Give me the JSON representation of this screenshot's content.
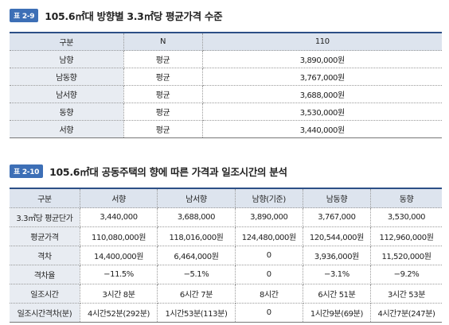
{
  "table1": {
    "label": "표 2-9",
    "title": "105.6㎡대 방향별 3.3㎡당 평균가격 수준",
    "header": [
      "구분",
      "N",
      "110"
    ],
    "rows": [
      [
        "남향",
        "평균",
        "3,890,000원"
      ],
      [
        "남동향",
        "평균",
        "3,767,000원"
      ],
      [
        "남서향",
        "평균",
        "3,688,000원"
      ],
      [
        "동향",
        "평균",
        "3,530,000원"
      ],
      [
        "서향",
        "평균",
        "3,440,000원"
      ]
    ]
  },
  "table2": {
    "label": "표 2-10",
    "title": "105.6㎡대 공동주택의 향에 따른 가격과 일조시간의 분석",
    "header": [
      "구분",
      "서향",
      "남서향",
      "남향(기준)",
      "남동향",
      "동향"
    ],
    "rows": [
      [
        "3.3㎡당 평균단가",
        "3,440,000",
        "3,688,000",
        "3,890,000",
        "3,767,000",
        "3,530,000"
      ],
      [
        "평균가격",
        "110,080,000원",
        "118,016,000원",
        "124,480,000원",
        "120,544,000원",
        "112,960,000원"
      ],
      [
        "격차",
        "14,400,000원",
        "6,464,000원",
        "0",
        "3,936,000원",
        "11,520,000원"
      ],
      [
        "격차율",
        "−11.5%",
        "−5.1%",
        "0",
        "−3.1%",
        "−9.2%"
      ],
      [
        "일조시간",
        "3시간 8분",
        "6시간 7분",
        "8시간",
        "6시간 51분",
        "3시간 53분"
      ],
      [
        "일조시간격차(분)",
        "4시간52분(292분)",
        "1시간53분(113분)",
        "0",
        "1시간9분(69분)",
        "4시간7분(247분)"
      ]
    ]
  }
}
